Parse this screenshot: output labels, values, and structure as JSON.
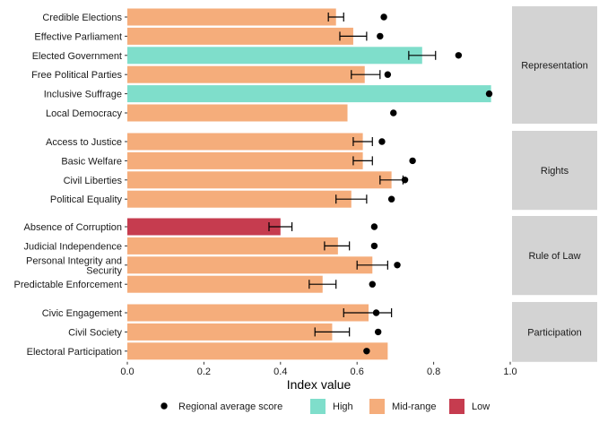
{
  "chart_data": {
    "type": "bar",
    "orientation": "horizontal",
    "xlabel": "Index value",
    "xlim": [
      0,
      1
    ],
    "xticks": [
      "0.0",
      "0.2",
      "0.4",
      "0.6",
      "0.8",
      "1.0"
    ],
    "colors": {
      "High": "#7fdecb",
      "Mid-range": "#f5ad7b",
      "Low": "#c63c4f",
      "facet_strip": "#d3d3d3",
      "point": "#000000"
    },
    "legend": {
      "position": "bottom",
      "point_label": "Regional average score",
      "entries": [
        "High",
        "Mid-range",
        "Low"
      ]
    },
    "facets": [
      {
        "name": "Representation",
        "items": [
          {
            "label": "Credible Elections",
            "value": 0.545,
            "category": "Mid-range",
            "err_low": 0.525,
            "err_high": 0.565,
            "regional_avg": 0.67
          },
          {
            "label": "Effective Parliament",
            "value": 0.59,
            "category": "Mid-range",
            "err_low": 0.555,
            "err_high": 0.625,
            "regional_avg": 0.66
          },
          {
            "label": "Elected Government",
            "value": 0.77,
            "category": "High",
            "err_low": 0.735,
            "err_high": 0.805,
            "regional_avg": 0.865
          },
          {
            "label": "Free Political Parties",
            "value": 0.62,
            "category": "Mid-range",
            "err_low": 0.585,
            "err_high": 0.66,
            "regional_avg": 0.68
          },
          {
            "label": "Inclusive Suffrage",
            "value": 0.95,
            "category": "High",
            "regional_avg": 0.945
          },
          {
            "label": "Local Democracy",
            "value": 0.575,
            "category": "Mid-range",
            "regional_avg": 0.695
          }
        ]
      },
      {
        "name": "Rights",
        "items": [
          {
            "label": "Access to Justice",
            "value": 0.615,
            "category": "Mid-range",
            "err_low": 0.59,
            "err_high": 0.64,
            "regional_avg": 0.665
          },
          {
            "label": "Basic Welfare",
            "value": 0.615,
            "category": "Mid-range",
            "err_low": 0.59,
            "err_high": 0.64,
            "regional_avg": 0.745
          },
          {
            "label": "Civil Liberties",
            "value": 0.69,
            "category": "Mid-range",
            "err_low": 0.66,
            "err_high": 0.72,
            "regional_avg": 0.725
          },
          {
            "label": "Political Equality",
            "value": 0.585,
            "category": "Mid-range",
            "err_low": 0.545,
            "err_high": 0.625,
            "regional_avg": 0.69
          }
        ]
      },
      {
        "name": "Rule of Law",
        "items": [
          {
            "label": "Absence of Corruption",
            "value": 0.4,
            "category": "Low",
            "err_low": 0.37,
            "err_high": 0.43,
            "regional_avg": 0.645
          },
          {
            "label": "Judicial Independence",
            "value": 0.55,
            "category": "Mid-range",
            "err_low": 0.515,
            "err_high": 0.58,
            "regional_avg": 0.645
          },
          {
            "label": "Personal Integrity and Security",
            "label_lines": [
              "Personal Integrity and",
              "Security"
            ],
            "value": 0.64,
            "category": "Mid-range",
            "err_low": 0.6,
            "err_high": 0.68,
            "regional_avg": 0.705
          },
          {
            "label": "Predictable Enforcement",
            "value": 0.51,
            "category": "Mid-range",
            "err_low": 0.475,
            "err_high": 0.545,
            "regional_avg": 0.64
          }
        ]
      },
      {
        "name": "Participation",
        "items": [
          {
            "label": "Civic Engagement",
            "value": 0.63,
            "category": "Mid-range",
            "err_low": 0.565,
            "err_high": 0.69,
            "regional_avg": 0.65
          },
          {
            "label": "Civil Society",
            "value": 0.535,
            "category": "Mid-range",
            "err_low": 0.49,
            "err_high": 0.58,
            "regional_avg": 0.655
          },
          {
            "label": "Electoral Participation",
            "value": 0.68,
            "category": "Mid-range",
            "regional_avg": 0.625
          }
        ]
      }
    ]
  }
}
